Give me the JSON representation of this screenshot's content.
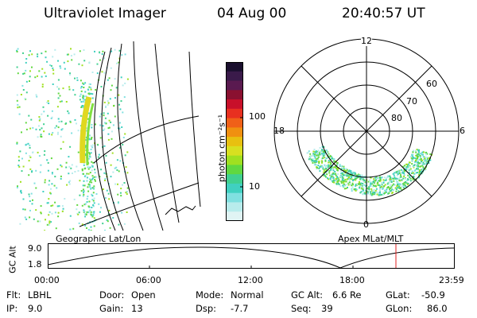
{
  "header": {
    "title": "Ultraviolet Imager",
    "date": "04 Aug 00",
    "time": "20:40:57 UT"
  },
  "colorbar": {
    "unit_label": "photon cm⁻²s⁻¹",
    "ticks": [
      "100",
      "10"
    ],
    "colors": [
      "#1a0f2e",
      "#3a1a4a",
      "#5a1a50",
      "#8a1030",
      "#c8102a",
      "#e83020",
      "#f06018",
      "#f09010",
      "#e8c010",
      "#d8e020",
      "#a0e020",
      "#60d840",
      "#40d090",
      "#40d0c0",
      "#80e0e0",
      "#b8ecec",
      "#e0f4f4"
    ]
  },
  "polar": {
    "mlt_labels": {
      "top": "12",
      "left": "18",
      "right": "6",
      "bottom": "0"
    },
    "lat_labels": [
      "60",
      "70",
      "80"
    ]
  },
  "panel_labels": {
    "left": "Geographic Lat/Lon",
    "right": "Apex MLat/MLT"
  },
  "altitude_plot": {
    "ylabel": "GC Alt",
    "yticks": [
      "9.0",
      "1.8"
    ],
    "xticks": [
      "00:00",
      "06:00",
      "12:00",
      "18:00",
      "23:59"
    ]
  },
  "info": {
    "flt_label": "Flt:",
    "flt_value": "LBHL",
    "ip_label": "IP:",
    "ip_value": "9.0",
    "door_label": "Door:",
    "door_value": "Open",
    "gain_label": "Gain:",
    "gain_value": "13",
    "mode_label": "Mode:",
    "mode_value": "Normal",
    "dsp_label": "Dsp:",
    "dsp_value": "-7.7",
    "gcalt_label": "GC Alt:",
    "gcalt_value": "6.6 Re",
    "seq_label": "Seq:",
    "seq_value": "39",
    "glat_label": "GLat:",
    "glat_value": "-50.9",
    "glon_label": "GLon:",
    "glon_value": "86.0"
  }
}
